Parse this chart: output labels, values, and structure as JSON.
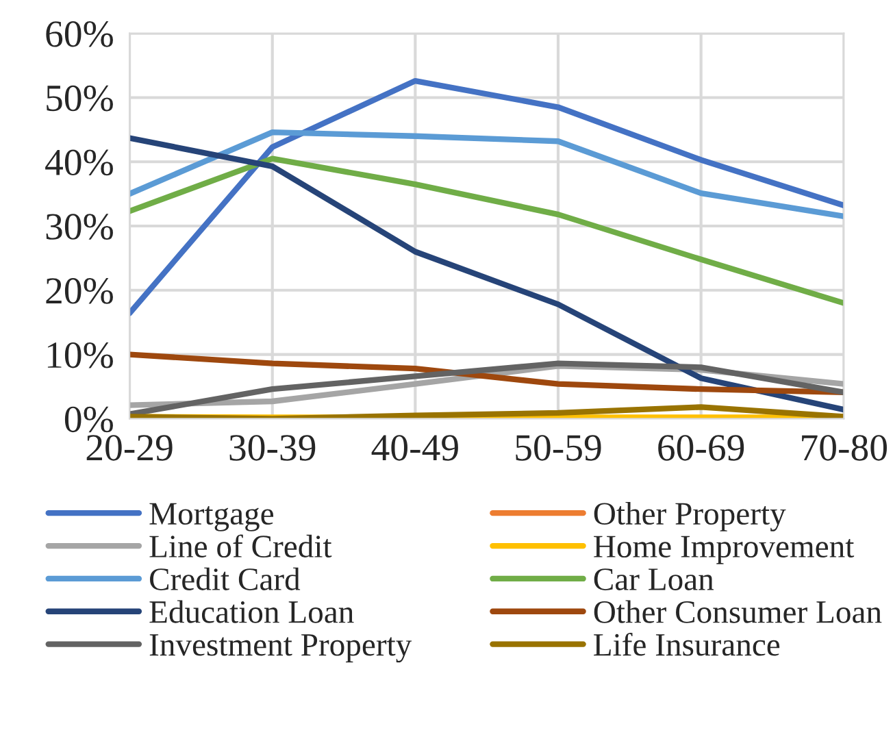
{
  "chart_data": {
    "type": "line",
    "categories": [
      "20-29",
      "30-39",
      "40-49",
      "50-59",
      "60-69",
      "70-80"
    ],
    "ylim": [
      0,
      0.6
    ],
    "yticks": [
      {
        "value": 0,
        "label": "0%"
      },
      {
        "value": 0.1,
        "label": "10%"
      },
      {
        "value": 0.2,
        "label": "20%"
      },
      {
        "value": 0.3,
        "label": "30%"
      },
      {
        "value": 0.4,
        "label": "40%"
      },
      {
        "value": 0.5,
        "label": "50%"
      },
      {
        "value": 0.6,
        "label": "60%"
      }
    ],
    "grid": true,
    "legend": "bottom",
    "marker": "none",
    "line_style": "solid",
    "series": [
      {
        "name": "Mortgage",
        "color": "#4472c4",
        "values": [
          0.164,
          0.423,
          0.526,
          0.485,
          0.403,
          0.332
        ]
      },
      {
        "name": "Other Property",
        "color": "#ed7d31",
        "values": [
          0.001,
          0.0,
          0.0,
          0.0,
          0.0,
          0.0
        ]
      },
      {
        "name": "Line of Credit",
        "color": "#a5a5a5",
        "values": [
          0.021,
          0.027,
          0.054,
          0.082,
          0.076,
          0.054
        ]
      },
      {
        "name": "Home Improvement",
        "color": "#ffc000",
        "values": [
          0.003,
          0.002,
          0.002,
          0.002,
          0.002,
          0.002
        ]
      },
      {
        "name": "Credit Card",
        "color": "#5b9bd5",
        "values": [
          0.35,
          0.446,
          0.44,
          0.432,
          0.351,
          0.315
        ]
      },
      {
        "name": "Car Loan",
        "color": "#70ad47",
        "values": [
          0.323,
          0.405,
          0.365,
          0.318,
          0.248,
          0.18
        ]
      },
      {
        "name": "Education Loan",
        "color": "#264478",
        "values": [
          0.437,
          0.393,
          0.26,
          0.178,
          0.063,
          0.014
        ]
      },
      {
        "name": "Other Consumer Loan",
        "color": "#9e480e",
        "values": [
          0.1,
          0.086,
          0.078,
          0.054,
          0.046,
          0.041
        ]
      },
      {
        "name": "Investment Property",
        "color": "#636363",
        "values": [
          0.007,
          0.046,
          0.066,
          0.086,
          0.08,
          0.041
        ]
      },
      {
        "name": "Life Insurance",
        "color": "#997300",
        "values": [
          0.003,
          0.0,
          0.005,
          0.009,
          0.018,
          0.003
        ]
      }
    ]
  }
}
